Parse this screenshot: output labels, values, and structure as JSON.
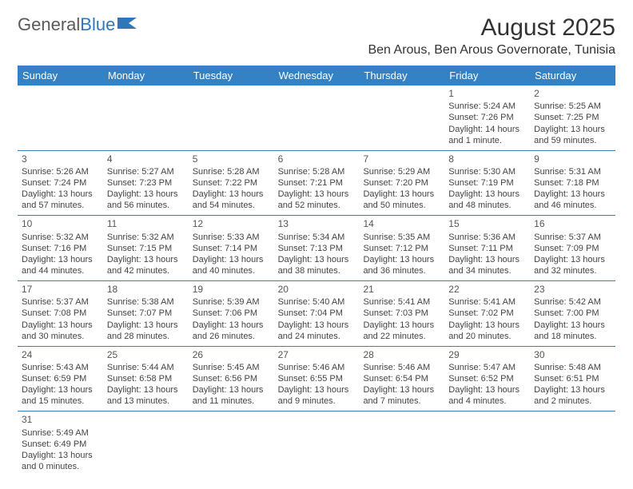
{
  "logo": {
    "text1": "General",
    "text2": "Blue"
  },
  "title": "August 2025",
  "location": "Ben Arous, Ben Arous Governorate, Tunisia",
  "colors": {
    "header_bg": "#3481c4",
    "header_text": "#ffffff",
    "divider": "#3481c4",
    "body_text": "#444444"
  },
  "day_headers": [
    "Sunday",
    "Monday",
    "Tuesday",
    "Wednesday",
    "Thursday",
    "Friday",
    "Saturday"
  ],
  "weeks": [
    [
      null,
      null,
      null,
      null,
      null,
      {
        "n": "1",
        "sr": "Sunrise: 5:24 AM",
        "ss": "Sunset: 7:26 PM",
        "dl": "Daylight: 14 hours and 1 minute."
      },
      {
        "n": "2",
        "sr": "Sunrise: 5:25 AM",
        "ss": "Sunset: 7:25 PM",
        "dl": "Daylight: 13 hours and 59 minutes."
      }
    ],
    [
      {
        "n": "3",
        "sr": "Sunrise: 5:26 AM",
        "ss": "Sunset: 7:24 PM",
        "dl": "Daylight: 13 hours and 57 minutes."
      },
      {
        "n": "4",
        "sr": "Sunrise: 5:27 AM",
        "ss": "Sunset: 7:23 PM",
        "dl": "Daylight: 13 hours and 56 minutes."
      },
      {
        "n": "5",
        "sr": "Sunrise: 5:28 AM",
        "ss": "Sunset: 7:22 PM",
        "dl": "Daylight: 13 hours and 54 minutes."
      },
      {
        "n": "6",
        "sr": "Sunrise: 5:28 AM",
        "ss": "Sunset: 7:21 PM",
        "dl": "Daylight: 13 hours and 52 minutes."
      },
      {
        "n": "7",
        "sr": "Sunrise: 5:29 AM",
        "ss": "Sunset: 7:20 PM",
        "dl": "Daylight: 13 hours and 50 minutes."
      },
      {
        "n": "8",
        "sr": "Sunrise: 5:30 AM",
        "ss": "Sunset: 7:19 PM",
        "dl": "Daylight: 13 hours and 48 minutes."
      },
      {
        "n": "9",
        "sr": "Sunrise: 5:31 AM",
        "ss": "Sunset: 7:18 PM",
        "dl": "Daylight: 13 hours and 46 minutes."
      }
    ],
    [
      {
        "n": "10",
        "sr": "Sunrise: 5:32 AM",
        "ss": "Sunset: 7:16 PM",
        "dl": "Daylight: 13 hours and 44 minutes."
      },
      {
        "n": "11",
        "sr": "Sunrise: 5:32 AM",
        "ss": "Sunset: 7:15 PM",
        "dl": "Daylight: 13 hours and 42 minutes."
      },
      {
        "n": "12",
        "sr": "Sunrise: 5:33 AM",
        "ss": "Sunset: 7:14 PM",
        "dl": "Daylight: 13 hours and 40 minutes."
      },
      {
        "n": "13",
        "sr": "Sunrise: 5:34 AM",
        "ss": "Sunset: 7:13 PM",
        "dl": "Daylight: 13 hours and 38 minutes."
      },
      {
        "n": "14",
        "sr": "Sunrise: 5:35 AM",
        "ss": "Sunset: 7:12 PM",
        "dl": "Daylight: 13 hours and 36 minutes."
      },
      {
        "n": "15",
        "sr": "Sunrise: 5:36 AM",
        "ss": "Sunset: 7:11 PM",
        "dl": "Daylight: 13 hours and 34 minutes."
      },
      {
        "n": "16",
        "sr": "Sunrise: 5:37 AM",
        "ss": "Sunset: 7:09 PM",
        "dl": "Daylight: 13 hours and 32 minutes."
      }
    ],
    [
      {
        "n": "17",
        "sr": "Sunrise: 5:37 AM",
        "ss": "Sunset: 7:08 PM",
        "dl": "Daylight: 13 hours and 30 minutes."
      },
      {
        "n": "18",
        "sr": "Sunrise: 5:38 AM",
        "ss": "Sunset: 7:07 PM",
        "dl": "Daylight: 13 hours and 28 minutes."
      },
      {
        "n": "19",
        "sr": "Sunrise: 5:39 AM",
        "ss": "Sunset: 7:06 PM",
        "dl": "Daylight: 13 hours and 26 minutes."
      },
      {
        "n": "20",
        "sr": "Sunrise: 5:40 AM",
        "ss": "Sunset: 7:04 PM",
        "dl": "Daylight: 13 hours and 24 minutes."
      },
      {
        "n": "21",
        "sr": "Sunrise: 5:41 AM",
        "ss": "Sunset: 7:03 PM",
        "dl": "Daylight: 13 hours and 22 minutes."
      },
      {
        "n": "22",
        "sr": "Sunrise: 5:41 AM",
        "ss": "Sunset: 7:02 PM",
        "dl": "Daylight: 13 hours and 20 minutes."
      },
      {
        "n": "23",
        "sr": "Sunrise: 5:42 AM",
        "ss": "Sunset: 7:00 PM",
        "dl": "Daylight: 13 hours and 18 minutes."
      }
    ],
    [
      {
        "n": "24",
        "sr": "Sunrise: 5:43 AM",
        "ss": "Sunset: 6:59 PM",
        "dl": "Daylight: 13 hours and 15 minutes."
      },
      {
        "n": "25",
        "sr": "Sunrise: 5:44 AM",
        "ss": "Sunset: 6:58 PM",
        "dl": "Daylight: 13 hours and 13 minutes."
      },
      {
        "n": "26",
        "sr": "Sunrise: 5:45 AM",
        "ss": "Sunset: 6:56 PM",
        "dl": "Daylight: 13 hours and 11 minutes."
      },
      {
        "n": "27",
        "sr": "Sunrise: 5:46 AM",
        "ss": "Sunset: 6:55 PM",
        "dl": "Daylight: 13 hours and 9 minutes."
      },
      {
        "n": "28",
        "sr": "Sunrise: 5:46 AM",
        "ss": "Sunset: 6:54 PM",
        "dl": "Daylight: 13 hours and 7 minutes."
      },
      {
        "n": "29",
        "sr": "Sunrise: 5:47 AM",
        "ss": "Sunset: 6:52 PM",
        "dl": "Daylight: 13 hours and 4 minutes."
      },
      {
        "n": "30",
        "sr": "Sunrise: 5:48 AM",
        "ss": "Sunset: 6:51 PM",
        "dl": "Daylight: 13 hours and 2 minutes."
      }
    ],
    [
      {
        "n": "31",
        "sr": "Sunrise: 5:49 AM",
        "ss": "Sunset: 6:49 PM",
        "dl": "Daylight: 13 hours and 0 minutes."
      },
      null,
      null,
      null,
      null,
      null,
      null
    ]
  ]
}
